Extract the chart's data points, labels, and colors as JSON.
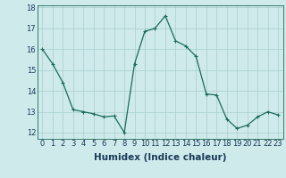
{
  "x": [
    0,
    1,
    2,
    3,
    4,
    5,
    6,
    7,
    8,
    9,
    10,
    11,
    12,
    13,
    14,
    15,
    16,
    17,
    18,
    19,
    20,
    21,
    22,
    23
  ],
  "y": [
    16.0,
    15.3,
    14.4,
    13.1,
    13.0,
    12.9,
    12.75,
    12.8,
    12.0,
    15.3,
    16.85,
    17.0,
    17.6,
    16.4,
    16.15,
    15.65,
    13.85,
    13.8,
    12.65,
    12.2,
    12.35,
    12.75,
    13.0,
    12.85
  ],
  "line_color": "#1a6b5a",
  "marker": "+",
  "marker_size": 3,
  "marker_linewidth": 0.8,
  "line_width": 0.9,
  "bg_color": "#ceeaea",
  "grid_color": "#aacece",
  "xlabel": "Humidex (Indice chaleur)",
  "xlabel_fontsize": 7.5,
  "tick_fontsize": 6,
  "ylim": [
    11.7,
    18.1
  ],
  "xlim": [
    -0.5,
    23.5
  ],
  "yticks": [
    12,
    13,
    14,
    15,
    16,
    17,
    18
  ],
  "xticks": [
    0,
    1,
    2,
    3,
    4,
    5,
    6,
    7,
    8,
    9,
    10,
    11,
    12,
    13,
    14,
    15,
    16,
    17,
    18,
    19,
    20,
    21,
    22,
    23
  ],
  "xlabel_color": "#1a3a5a",
  "tick_color": "#1a3a5a",
  "spine_color": "#3a7a6a"
}
